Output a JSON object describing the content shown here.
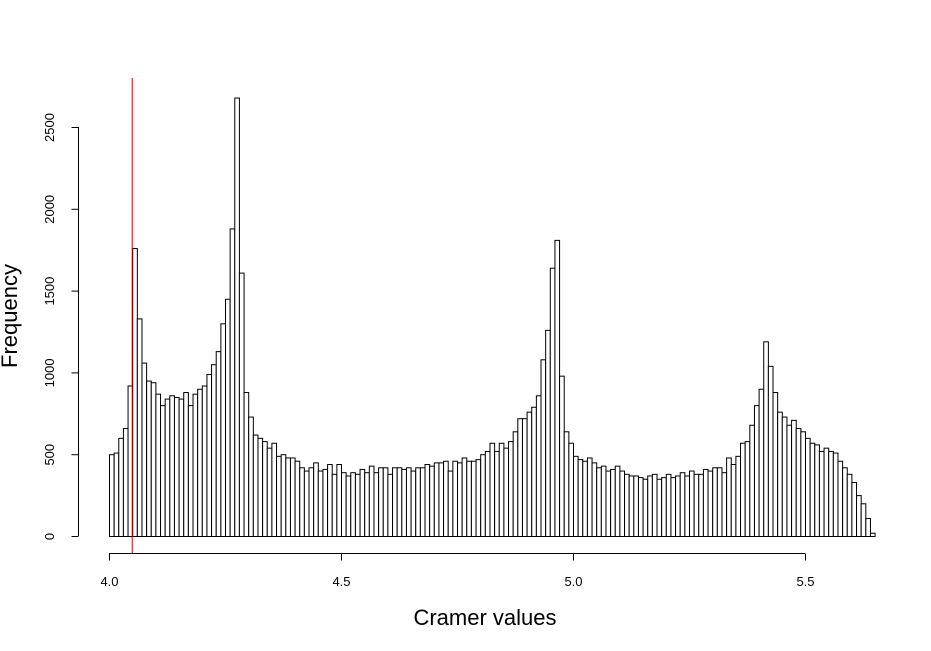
{
  "chart_data": {
    "type": "bar",
    "subtype": "histogram",
    "title": "",
    "xlabel": "Cramer values",
    "ylabel": "Frequency",
    "xlim": [
      4.0,
      5.62
    ],
    "ylim": [
      0,
      2700
    ],
    "x_ticks": [
      "4.0",
      "4.5",
      "5.0",
      "5.5"
    ],
    "y_ticks": [
      "0",
      "500",
      "1000",
      "1500",
      "2000",
      "2500"
    ],
    "x_tick_values": [
      4.0,
      4.5,
      5.0,
      5.5
    ],
    "y_tick_values": [
      0,
      500,
      1000,
      1500,
      2000,
      2500
    ],
    "bin_start": 4.0,
    "bin_width": 0.01,
    "reference_line": {
      "x": 4.05,
      "color": "#cc0000"
    },
    "bar_fill": "#ffffff",
    "bar_stroke": "#000000",
    "grid": false,
    "legend": "none",
    "values": [
      500,
      510,
      600,
      660,
      920,
      1760,
      1330,
      1060,
      950,
      940,
      870,
      800,
      840,
      860,
      850,
      840,
      880,
      800,
      870,
      900,
      920,
      990,
      1050,
      1130,
      1300,
      1450,
      1880,
      2680,
      1610,
      880,
      730,
      620,
      600,
      580,
      540,
      570,
      490,
      500,
      480,
      480,
      460,
      420,
      400,
      420,
      450,
      400,
      410,
      440,
      380,
      440,
      390,
      370,
      390,
      380,
      410,
      390,
      430,
      390,
      420,
      420,
      380,
      420,
      420,
      410,
      420,
      400,
      420,
      420,
      440,
      430,
      450,
      450,
      460,
      400,
      460,
      450,
      480,
      460,
      460,
      470,
      500,
      520,
      570,
      520,
      570,
      540,
      580,
      640,
      720,
      720,
      760,
      790,
      860,
      1080,
      1260,
      1640,
      1810,
      980,
      640,
      570,
      490,
      470,
      460,
      480,
      450,
      420,
      430,
      400,
      410,
      430,
      400,
      380,
      370,
      370,
      360,
      350,
      370,
      380,
      350,
      360,
      380,
      360,
      370,
      390,
      370,
      400,
      380,
      380,
      410,
      400,
      420,
      420,
      390,
      480,
      440,
      490,
      570,
      580,
      680,
      800,
      900,
      1190,
      1040,
      880,
      760,
      730,
      680,
      710,
      660,
      640,
      600,
      570,
      560,
      520,
      540,
      520,
      510,
      460,
      420,
      380,
      330,
      250,
      200,
      110,
      20
    ]
  }
}
